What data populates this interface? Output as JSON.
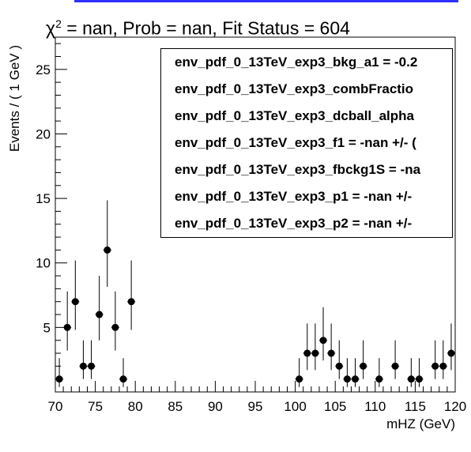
{
  "title": {
    "chi_symbol": "χ",
    "chi_exp": "2",
    "rest": " = nan, Prob = nan, Fit Status = 604"
  },
  "stats_lines": [
    "env_pdf_0_13TeV_exp3_bkg_a1 = -0.2",
    "env_pdf_0_13TeV_exp3_combFractio",
    "env_pdf_0_13TeV_exp3_dcball_alpha",
    "env_pdf_0_13TeV_exp3_f1 = -nan +/- (",
    "env_pdf_0_13TeV_exp3_fbckg1S = -na",
    "env_pdf_0_13TeV_exp3_p1 = -nan +/-",
    "env_pdf_0_13TeV_exp3_p2 = -nan +/-"
  ],
  "colors": {
    "marker": "#000000",
    "top_bar": "#3030ff"
  },
  "chart_data": {
    "type": "scatter",
    "xlabel": "mHZ (GeV)",
    "ylabel": "Events / ( 1 GeV )",
    "xlim": [
      70,
      120
    ],
    "ylim": [
      0,
      27.5
    ],
    "x_ticks": [
      70,
      75,
      80,
      85,
      90,
      95,
      100,
      105,
      110,
      115,
      120
    ],
    "y_ticks": [
      5,
      10,
      15,
      20,
      25
    ],
    "points": [
      {
        "x": 70.5,
        "y": 1
      },
      {
        "x": 71.5,
        "y": 5
      },
      {
        "x": 72.5,
        "y": 7
      },
      {
        "x": 73.5,
        "y": 2
      },
      {
        "x": 74.5,
        "y": 2
      },
      {
        "x": 75.5,
        "y": 6
      },
      {
        "x": 76.5,
        "y": 11
      },
      {
        "x": 77.5,
        "y": 5
      },
      {
        "x": 78.5,
        "y": 1
      },
      {
        "x": 79.5,
        "y": 7
      },
      {
        "x": 100.5,
        "y": 1
      },
      {
        "x": 101.5,
        "y": 3
      },
      {
        "x": 102.5,
        "y": 3
      },
      {
        "x": 103.5,
        "y": 4
      },
      {
        "x": 104.5,
        "y": 3
      },
      {
        "x": 105.5,
        "y": 2
      },
      {
        "x": 106.5,
        "y": 1
      },
      {
        "x": 107.5,
        "y": 1
      },
      {
        "x": 108.5,
        "y": 2
      },
      {
        "x": 110.5,
        "y": 1
      },
      {
        "x": 112.5,
        "y": 2
      },
      {
        "x": 114.5,
        "y": 1
      },
      {
        "x": 115.5,
        "y": 1
      },
      {
        "x": 117.5,
        "y": 2
      },
      {
        "x": 118.5,
        "y": 2
      },
      {
        "x": 119.5,
        "y": 3
      }
    ]
  }
}
